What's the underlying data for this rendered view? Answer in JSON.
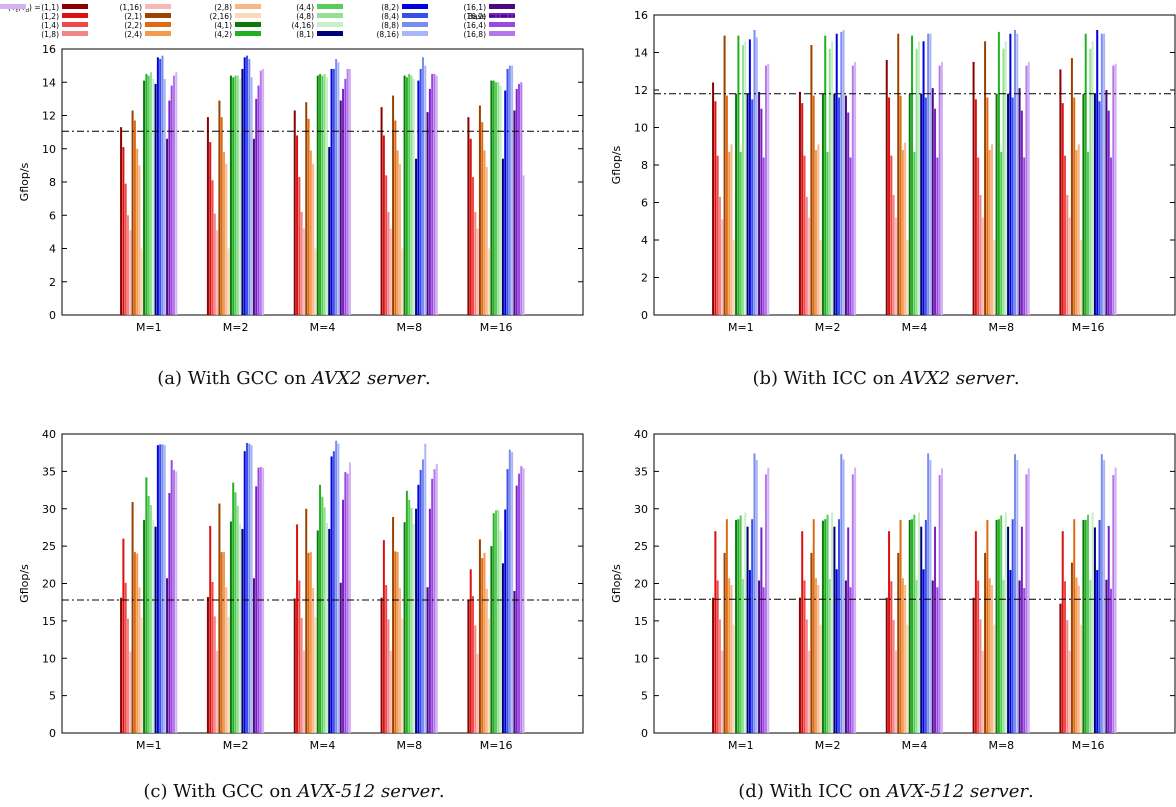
{
  "figure": {
    "legend": {
      "prefix": "(T",
      "sub_c": "c",
      "comma": ",T",
      "sub_d": "d",
      "suffix": ") ="
    },
    "captions": [
      {
        "label": "(a)",
        "text": "With GCC on",
        "emph": "AVX2 server",
        "end": "."
      },
      {
        "label": "(b)",
        "text": "With ICC on",
        "emph": "AVX2 server",
        "end": "."
      },
      {
        "label": "(c)",
        "text": "With GCC on",
        "emph": "AVX-512 server",
        "end": "."
      },
      {
        "label": "(d)",
        "text": "With ICC on",
        "emph": "AVX-512 server",
        "end": "."
      }
    ]
  },
  "series_styles": [
    {
      "name": "(1,1)",
      "color": "#8b0000"
    },
    {
      "name": "(1,2)",
      "color": "#dd1010"
    },
    {
      "name": "(1,4)",
      "color": "#f04848"
    },
    {
      "name": "(1,8)",
      "color": "#f48585"
    },
    {
      "name": "(1,16)",
      "color": "#f8b8b8"
    },
    {
      "name": "(2,1)",
      "color": "#9a4200"
    },
    {
      "name": "(2,2)",
      "color": "#e06a10"
    },
    {
      "name": "(2,4)",
      "color": "#f29a50"
    },
    {
      "name": "(2,8)",
      "color": "#f6b88a"
    },
    {
      "name": "(2,16)",
      "color": "#fad8bc"
    },
    {
      "name": "(4,1)",
      "color": "#0a7a0a"
    },
    {
      "name": "(4,2)",
      "color": "#20b020"
    },
    {
      "name": "(4,4)",
      "color": "#58cc58"
    },
    {
      "name": "(4,8)",
      "color": "#92e092"
    },
    {
      "name": "(4,16)",
      "color": "#c8f0c8"
    },
    {
      "name": "(8,1)",
      "color": "#00007a"
    },
    {
      "name": "(8,2)",
      "color": "#0000e0"
    },
    {
      "name": "(8,4)",
      "color": "#3a4ee8"
    },
    {
      "name": "(8,8)",
      "color": "#7a8cf0"
    },
    {
      "name": "(8,16)",
      "color": "#aab6f6"
    },
    {
      "name": "(16,1)",
      "color": "#4a0a7a"
    },
    {
      "name": "(16,2)",
      "color": "#7a20c8"
    },
    {
      "name": "(16,4)",
      "color": "#9a48e0"
    },
    {
      "name": "(16,8)",
      "color": "#b478ea"
    },
    {
      "name": "(16,16)",
      "color": "#d4b0f4"
    }
  ],
  "base_legend_label": "Base",
  "chart_data": [
    {
      "type": "bar",
      "ylabel": "Gflop/s",
      "ylim": [
        0,
        16
      ],
      "yticks": [
        0,
        2,
        4,
        6,
        8,
        10,
        12,
        14,
        16
      ],
      "categories": [
        "M=1",
        "M=2",
        "M=4",
        "M=8",
        "M=16"
      ],
      "base": 11.05,
      "values": [
        [
          11.3,
          10.1,
          7.9,
          6.0,
          5.1,
          12.3,
          11.7,
          10.0,
          9.0,
          4.0,
          14.1,
          14.5,
          14.4,
          14.6,
          14.2,
          13.9,
          15.5,
          15.4,
          15.6,
          14.2,
          10.6,
          12.9,
          13.8,
          14.4,
          14.6
        ],
        [
          11.9,
          10.4,
          8.1,
          6.1,
          5.1,
          12.9,
          11.9,
          9.8,
          9.1,
          4.0,
          14.4,
          14.3,
          14.4,
          14.4,
          14.2,
          14.8,
          15.5,
          15.6,
          15.4,
          14.3,
          10.6,
          13.0,
          13.8,
          14.7,
          14.8
        ],
        [
          12.3,
          10.8,
          8.3,
          6.2,
          5.2,
          12.8,
          11.8,
          9.9,
          9.1,
          4.0,
          14.4,
          14.5,
          14.4,
          14.5,
          14.3,
          10.1,
          14.8,
          14.8,
          15.4,
          15.2,
          12.9,
          13.6,
          14.2,
          14.8,
          14.8
        ],
        [
          12.5,
          10.8,
          8.4,
          6.2,
          5.2,
          13.2,
          11.7,
          9.9,
          9.1,
          4.0,
          14.4,
          14.3,
          14.5,
          14.4,
          14.2,
          9.4,
          14.1,
          14.8,
          15.5,
          15.0,
          12.2,
          13.6,
          14.5,
          14.5,
          14.4
        ],
        [
          11.9,
          10.6,
          8.3,
          6.2,
          5.2,
          12.6,
          11.6,
          9.9,
          8.9,
          4.0,
          14.1,
          14.1,
          14.0,
          14.0,
          13.8,
          9.4,
          13.5,
          14.8,
          15.0,
          15.0,
          12.3,
          13.6,
          13.9,
          14.0,
          8.4
        ]
      ]
    },
    {
      "type": "bar",
      "ylabel": "Gflop/s",
      "ylim": [
        0,
        16
      ],
      "yticks": [
        0,
        2,
        4,
        6,
        8,
        10,
        12,
        14,
        16
      ],
      "categories": [
        "M=1",
        "M=2",
        "M=4",
        "M=8",
        "M=16"
      ],
      "base": 11.8,
      "values": [
        [
          12.4,
          11.4,
          8.5,
          6.3,
          5.1,
          14.9,
          11.7,
          8.7,
          9.1,
          4.0,
          11.8,
          14.9,
          8.7,
          14.4,
          14.6,
          11.8,
          14.7,
          11.5,
          15.2,
          14.8,
          11.9,
          11.0,
          8.4,
          13.3,
          13.4
        ],
        [
          11.9,
          11.3,
          8.5,
          6.3,
          5.2,
          14.4,
          11.7,
          8.8,
          9.1,
          4.0,
          11.8,
          14.9,
          8.7,
          14.2,
          14.6,
          11.8,
          15.0,
          11.6,
          15.1,
          15.2,
          11.7,
          10.8,
          8.4,
          13.3,
          13.5
        ],
        [
          13.6,
          11.6,
          8.5,
          6.4,
          5.2,
          15.0,
          11.7,
          8.8,
          9.2,
          4.0,
          11.8,
          14.9,
          8.7,
          14.2,
          14.6,
          11.8,
          14.6,
          11.6,
          15.0,
          15.0,
          12.1,
          11.0,
          8.4,
          13.3,
          13.5
        ],
        [
          13.5,
          11.5,
          8.4,
          6.4,
          5.2,
          14.6,
          11.6,
          8.8,
          9.1,
          4.0,
          11.8,
          15.1,
          8.7,
          14.2,
          14.6,
          11.8,
          15.0,
          11.6,
          15.2,
          15.0,
          12.1,
          10.9,
          8.4,
          13.3,
          13.5
        ],
        [
          13.1,
          11.3,
          8.5,
          6.4,
          5.2,
          13.7,
          11.6,
          8.8,
          9.1,
          4.0,
          11.8,
          15.0,
          8.7,
          14.2,
          14.6,
          11.8,
          15.2,
          11.4,
          15.0,
          15.0,
          12.0,
          10.9,
          8.4,
          13.3,
          13.4
        ]
      ]
    },
    {
      "type": "bar",
      "ylabel": "Gflop/s",
      "ylim": [
        0,
        40
      ],
      "yticks": [
        0,
        5,
        10,
        15,
        20,
        25,
        30,
        35,
        40
      ],
      "categories": [
        "M=1",
        "M=2",
        "M=4",
        "M=8",
        "M=16"
      ],
      "base": 17.8,
      "values": [
        [
          18.1,
          26.0,
          20.1,
          15.3,
          10.9,
          30.9,
          24.2,
          24.0,
          19.5,
          15.5,
          28.5,
          34.2,
          31.7,
          30.5,
          28.5,
          27.6,
          38.5,
          38.6,
          38.6,
          38.5,
          20.7,
          32.1,
          36.5,
          35.2,
          35.0
        ],
        [
          18.2,
          27.7,
          20.2,
          15.6,
          11.0,
          30.7,
          24.2,
          24.2,
          19.5,
          15.5,
          28.3,
          33.5,
          32.2,
          30.4,
          28.0,
          27.3,
          37.7,
          38.8,
          38.7,
          38.5,
          20.7,
          33.0,
          35.5,
          35.6,
          35.5
        ],
        [
          18.0,
          27.9,
          20.4,
          15.4,
          11.0,
          30.0,
          24.1,
          24.2,
          19.4,
          15.5,
          27.1,
          33.2,
          31.6,
          30.2,
          28.1,
          27.3,
          37.0,
          37.7,
          39.1,
          38.7,
          20.1,
          31.2,
          34.9,
          34.7,
          36.2
        ],
        [
          18.1,
          25.8,
          19.8,
          15.2,
          11.0,
          28.9,
          24.3,
          24.2,
          19.4,
          15.3,
          28.2,
          32.4,
          31.2,
          30.1,
          28.0,
          30.0,
          33.2,
          35.2,
          36.6,
          38.7,
          19.5,
          30.0,
          34.0,
          35.3,
          36.0
        ],
        [
          17.8,
          21.9,
          18.3,
          14.4,
          10.6,
          25.9,
          23.4,
          24.1,
          19.3,
          15.3,
          25.0,
          29.4,
          29.8,
          29.8,
          27.1,
          22.7,
          29.9,
          35.3,
          37.9,
          37.6,
          19.0,
          33.1,
          34.7,
          35.7,
          35.4
        ]
      ]
    },
    {
      "type": "bar",
      "ylabel": "Gflop/s",
      "ylim": [
        0,
        40
      ],
      "yticks": [
        0,
        5,
        10,
        15,
        20,
        25,
        30,
        35,
        40
      ],
      "categories": [
        "M=1",
        "M=2",
        "M=4",
        "M=8",
        "M=16"
      ],
      "base": 17.9,
      "values": [
        [
          18.1,
          27.0,
          20.4,
          15.2,
          11.0,
          24.1,
          28.6,
          20.7,
          19.8,
          14.5,
          28.5,
          28.6,
          29.1,
          20.6,
          29.5,
          27.6,
          21.8,
          28.6,
          37.4,
          36.5,
          20.4,
          27.5,
          19.5,
          34.6,
          35.5
        ],
        [
          18.1,
          27.0,
          20.4,
          15.2,
          11.0,
          24.1,
          28.6,
          20.7,
          19.8,
          14.5,
          28.4,
          28.6,
          29.2,
          20.6,
          29.5,
          27.6,
          21.9,
          28.6,
          37.3,
          36.6,
          20.4,
          27.5,
          19.5,
          34.6,
          35.5
        ],
        [
          18.1,
          27.0,
          20.3,
          15.1,
          11.0,
          24.1,
          28.5,
          20.7,
          19.8,
          14.5,
          28.5,
          28.6,
          29.2,
          20.5,
          29.5,
          27.6,
          21.9,
          28.5,
          37.4,
          36.5,
          20.4,
          27.6,
          19.5,
          34.5,
          35.4
        ],
        [
          18.1,
          27.0,
          20.4,
          15.2,
          11.0,
          24.1,
          28.5,
          20.7,
          19.8,
          14.5,
          28.5,
          28.6,
          29.1,
          20.5,
          29.5,
          27.6,
          21.8,
          28.6,
          37.3,
          36.5,
          20.4,
          27.6,
          19.4,
          34.6,
          35.4
        ],
        [
          17.3,
          27.0,
          20.3,
          15.1,
          11.0,
          22.8,
          28.6,
          20.8,
          19.7,
          14.5,
          28.5,
          28.5,
          29.2,
          20.5,
          29.5,
          27.5,
          21.8,
          28.5,
          37.3,
          36.5,
          20.5,
          27.7,
          19.3,
          34.5,
          35.5
        ]
      ]
    }
  ]
}
